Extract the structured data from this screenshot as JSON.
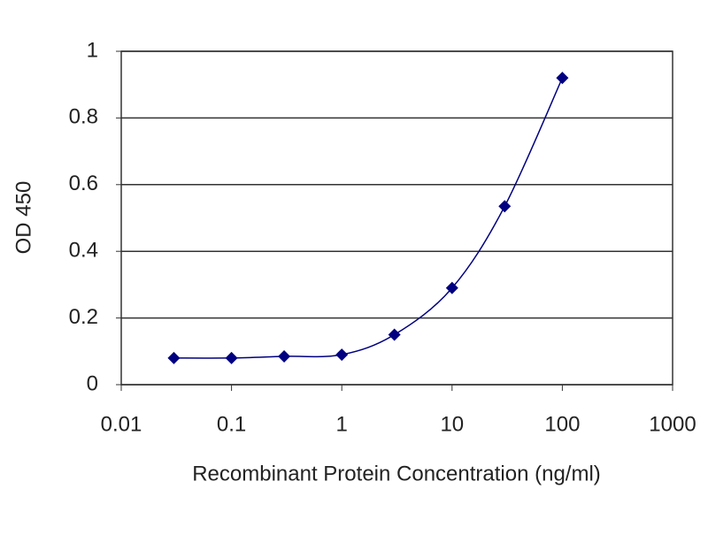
{
  "chart_data": {
    "type": "line",
    "log_x": true,
    "grid": true,
    "x_label": "Recombinant Protein Concentration (ng/ml)",
    "y_label": "OD 450",
    "x": [
      0.03,
      0.1,
      0.3,
      1,
      3,
      10,
      30,
      100
    ],
    "series": [
      {
        "name": "OD 450",
        "color": "#000080",
        "values": [
          0.08,
          0.08,
          0.085,
          0.09,
          0.15,
          0.29,
          0.535,
          0.92
        ]
      }
    ],
    "xlim": [
      0.01,
      1000
    ],
    "xticks": [
      0.01,
      0.1,
      1,
      10,
      100,
      1000
    ],
    "ylim": [
      0,
      1
    ],
    "yticks": [
      0,
      0.2,
      0.4,
      0.6,
      0.8,
      1
    ]
  }
}
